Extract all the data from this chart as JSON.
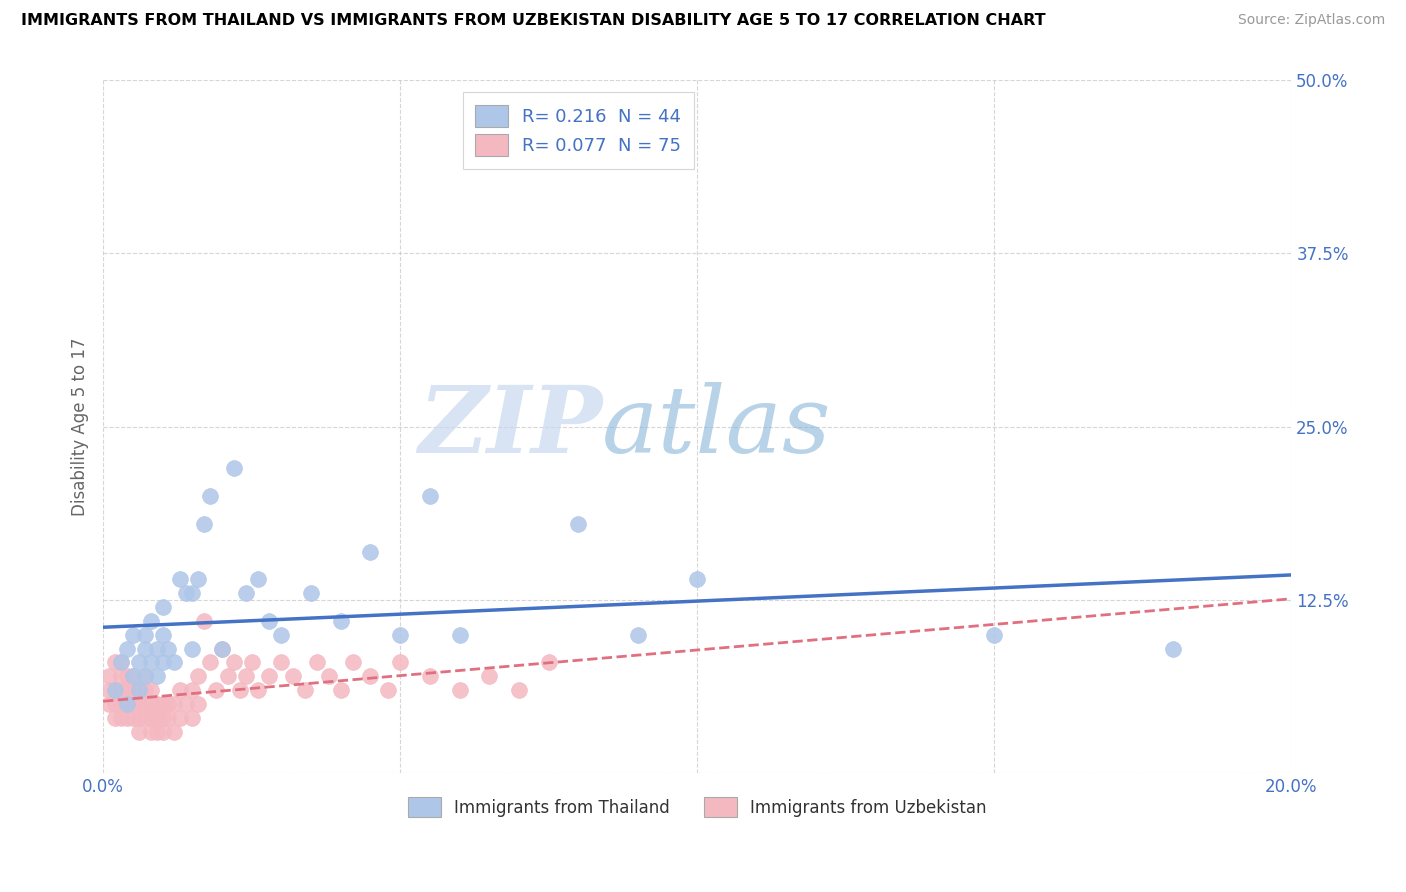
{
  "title": "IMMIGRANTS FROM THAILAND VS IMMIGRANTS FROM UZBEKISTAN DISABILITY AGE 5 TO 17 CORRELATION CHART",
  "source": "Source: ZipAtlas.com",
  "ylabel": "Disability Age 5 to 17",
  "xlim": [
    0.0,
    0.2
  ],
  "ylim": [
    0.0,
    0.5
  ],
  "xticks": [
    0.0,
    0.05,
    0.1,
    0.15,
    0.2
  ],
  "xtick_labels": [
    "0.0%",
    "",
    "",
    "",
    "20.0%"
  ],
  "yticks": [
    0.0,
    0.125,
    0.25,
    0.375,
    0.5
  ],
  "ytick_labels": [
    "",
    "12.5%",
    "25.0%",
    "37.5%",
    "50.0%"
  ],
  "thailand_color": "#aec6e8",
  "uzbekistan_color": "#f4b8c1",
  "thailand_line_color": "#4472c4",
  "uzbekistan_line_color": "#e07080",
  "series1_label": "Immigrants from Thailand",
  "series2_label": "Immigrants from Uzbekistan",
  "R1": "0.216",
  "N1": "44",
  "R2": "0.077",
  "N2": "75",
  "tick_color": "#4472c4",
  "grid_color": "#cccccc",
  "watermark_text": "ZIPatlas",
  "thailand_x": [
    0.002,
    0.003,
    0.004,
    0.004,
    0.005,
    0.005,
    0.006,
    0.006,
    0.007,
    0.007,
    0.007,
    0.008,
    0.008,
    0.009,
    0.009,
    0.01,
    0.01,
    0.01,
    0.011,
    0.012,
    0.013,
    0.014,
    0.015,
    0.015,
    0.016,
    0.017,
    0.018,
    0.02,
    0.022,
    0.024,
    0.026,
    0.028,
    0.03,
    0.035,
    0.04,
    0.045,
    0.05,
    0.055,
    0.06,
    0.08,
    0.09,
    0.1,
    0.15,
    0.18
  ],
  "thailand_y": [
    0.06,
    0.08,
    0.05,
    0.09,
    0.07,
    0.1,
    0.06,
    0.08,
    0.09,
    0.07,
    0.1,
    0.08,
    0.11,
    0.07,
    0.09,
    0.1,
    0.08,
    0.12,
    0.09,
    0.08,
    0.14,
    0.13,
    0.13,
    0.09,
    0.14,
    0.18,
    0.2,
    0.09,
    0.22,
    0.13,
    0.14,
    0.11,
    0.1,
    0.13,
    0.11,
    0.16,
    0.1,
    0.2,
    0.1,
    0.18,
    0.1,
    0.14,
    0.1,
    0.09
  ],
  "uzbekistan_x": [
    0.001,
    0.001,
    0.001,
    0.002,
    0.002,
    0.002,
    0.002,
    0.003,
    0.003,
    0.003,
    0.003,
    0.003,
    0.004,
    0.004,
    0.004,
    0.004,
    0.005,
    0.005,
    0.005,
    0.005,
    0.006,
    0.006,
    0.006,
    0.006,
    0.007,
    0.007,
    0.007,
    0.007,
    0.008,
    0.008,
    0.008,
    0.008,
    0.009,
    0.009,
    0.009,
    0.01,
    0.01,
    0.01,
    0.011,
    0.011,
    0.012,
    0.012,
    0.013,
    0.013,
    0.014,
    0.015,
    0.015,
    0.016,
    0.016,
    0.017,
    0.018,
    0.019,
    0.02,
    0.021,
    0.022,
    0.023,
    0.024,
    0.025,
    0.026,
    0.028,
    0.03,
    0.032,
    0.034,
    0.036,
    0.038,
    0.04,
    0.042,
    0.045,
    0.048,
    0.05,
    0.055,
    0.06,
    0.065,
    0.07,
    0.075
  ],
  "uzbekistan_y": [
    0.05,
    0.06,
    0.07,
    0.04,
    0.05,
    0.06,
    0.08,
    0.04,
    0.05,
    0.06,
    0.07,
    0.08,
    0.04,
    0.05,
    0.06,
    0.07,
    0.04,
    0.05,
    0.06,
    0.07,
    0.03,
    0.04,
    0.05,
    0.06,
    0.04,
    0.05,
    0.06,
    0.07,
    0.03,
    0.04,
    0.05,
    0.06,
    0.03,
    0.04,
    0.05,
    0.03,
    0.04,
    0.05,
    0.04,
    0.05,
    0.03,
    0.05,
    0.04,
    0.06,
    0.05,
    0.04,
    0.06,
    0.05,
    0.07,
    0.11,
    0.08,
    0.06,
    0.09,
    0.07,
    0.08,
    0.06,
    0.07,
    0.08,
    0.06,
    0.07,
    0.08,
    0.07,
    0.06,
    0.08,
    0.07,
    0.06,
    0.08,
    0.07,
    0.06,
    0.08,
    0.07,
    0.06,
    0.07,
    0.06,
    0.08
  ]
}
